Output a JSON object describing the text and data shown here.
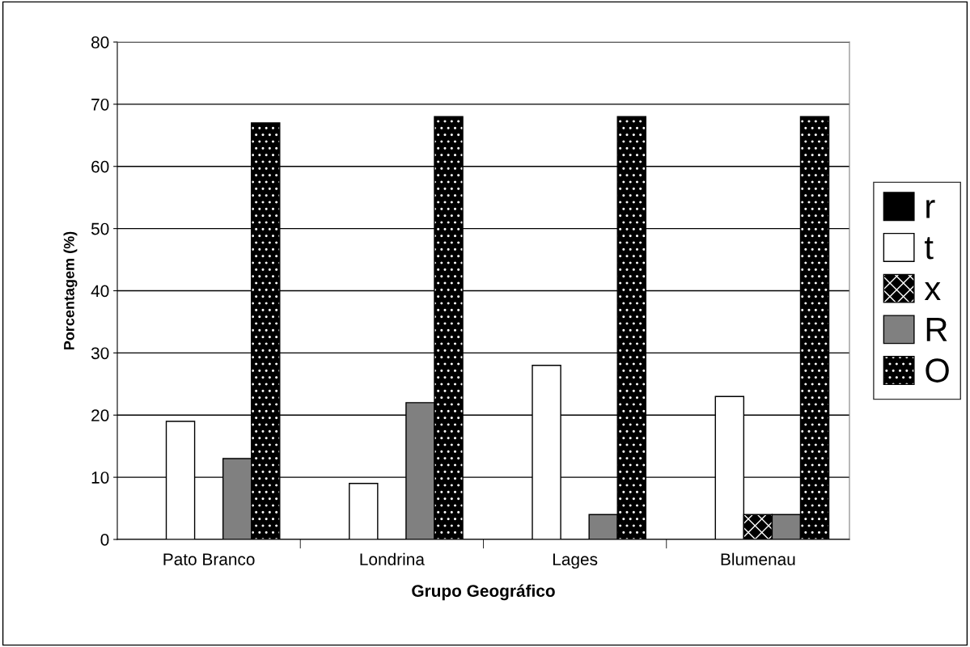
{
  "chart_data": {
    "type": "bar",
    "xlabel": "Grupo Geográfico",
    "ylabel": "Porcentagem (%)",
    "categories": [
      "Pato Branco",
      "Londrina",
      "Lages",
      "Blumenau"
    ],
    "series": [
      {
        "name": "r",
        "color": "#000000",
        "values": [
          0,
          0,
          0,
          0
        ]
      },
      {
        "name": "t",
        "color": "#ffffff",
        "values": [
          19,
          9,
          28,
          23
        ]
      },
      {
        "name": "x",
        "color": "#000000",
        "values": [
          0,
          0,
          0,
          4
        ]
      },
      {
        "name": "R",
        "color": "#808080",
        "values": [
          13,
          22,
          4,
          4
        ]
      },
      {
        "name": "O",
        "color": "#000000",
        "values": [
          67,
          68,
          68,
          68
        ]
      }
    ],
    "ylim": [
      0,
      80
    ],
    "yticks": [
      0,
      10,
      20,
      30,
      40,
      50,
      60,
      70,
      80
    ],
    "grid": "y",
    "legend": "right"
  }
}
